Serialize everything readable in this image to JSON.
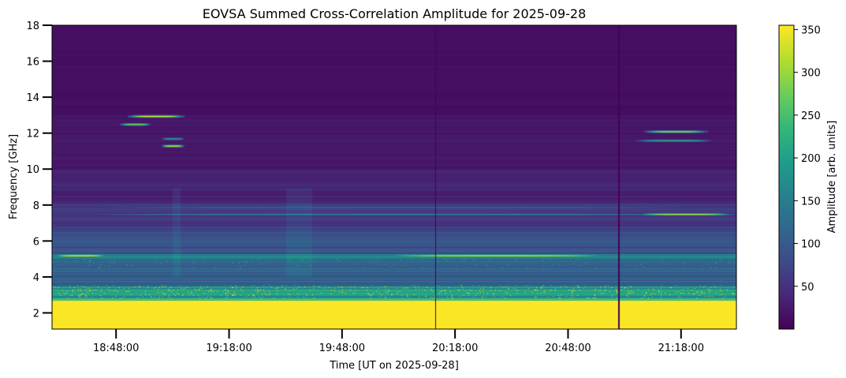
{
  "chart_data": {
    "type": "heatmap",
    "title": "EOVSA Summed Cross-Correlation Amplitude for 2025-09-28",
    "xlabel": "Time [UT on 2025-09-28]",
    "ylabel": "Frequency [GHz]",
    "colorbar_label": "Amplitude [arb. units]",
    "colormap": "viridis",
    "x_range_minutes_utc": [
      1111,
      1292.7
    ],
    "x_ticks": [
      {
        "label": "18:48:00",
        "min": 1128
      },
      {
        "label": "19:18:00",
        "min": 1158
      },
      {
        "label": "19:48:00",
        "min": 1188
      },
      {
        "label": "20:18:00",
        "min": 1218
      },
      {
        "label": "20:48:00",
        "min": 1248
      },
      {
        "label": "21:18:00",
        "min": 1278
      }
    ],
    "y_range_ghz": [
      1.1,
      18
    ],
    "y_ticks": [
      2,
      4,
      6,
      8,
      10,
      12,
      14,
      16,
      18
    ],
    "color_range": [
      0,
      355
    ],
    "color_ticks": [
      50,
      100,
      150,
      200,
      250,
      300,
      350
    ],
    "baseline_profile": [
      {
        "f": [
          1.1,
          2.7
        ],
        "amp": 355
      },
      {
        "f": [
          2.7,
          2.85
        ],
        "amp": 260
      },
      {
        "f": [
          2.85,
          3.5
        ],
        "amp": 190
      },
      {
        "f": [
          3.5,
          5.05
        ],
        "amp": 110
      },
      {
        "f": [
          5.05,
          5.3
        ],
        "amp": 230
      },
      {
        "f": [
          5.3,
          6.5
        ],
        "amp": 85
      },
      {
        "f": [
          6.5,
          8.1
        ],
        "amp": 60
      },
      {
        "f": [
          8.1,
          10
        ],
        "amp": 35
      },
      {
        "f": [
          10,
          13
        ],
        "amp": 22
      },
      {
        "f": [
          13,
          18
        ],
        "amp": 14
      }
    ],
    "features": [
      {
        "f": 5.2,
        "t": [
          1111,
          1126
        ],
        "amp": 355
      },
      {
        "f": 5.2,
        "t": [
          1196,
          1262
        ],
        "amp": 340
      },
      {
        "f": 12.95,
        "t": [
          1131,
          1146
        ],
        "amp": 355
      },
      {
        "f": 12.5,
        "t": [
          1129,
          1137
        ],
        "amp": 300
      },
      {
        "f": 11.3,
        "t": [
          1140,
          1146
        ],
        "amp": 340
      },
      {
        "f": 11.7,
        "t": [
          1140,
          1146
        ],
        "amp": 200
      },
      {
        "f": 12.1,
        "t": [
          1268,
          1285
        ],
        "amp": 320
      },
      {
        "f": 11.6,
        "t": [
          1266,
          1286
        ],
        "amp": 220
      },
      {
        "f": 7.5,
        "t": [
          1266,
          1292
        ],
        "amp": 330
      },
      {
        "f": 7.5,
        "t": [
          1111,
          1292
        ],
        "amp": 160
      },
      {
        "f": 7.9,
        "t": [
          1111,
          1292
        ],
        "amp": 120
      }
    ],
    "dropouts_minutes": [
      1212.7,
      1261.4
    ]
  }
}
